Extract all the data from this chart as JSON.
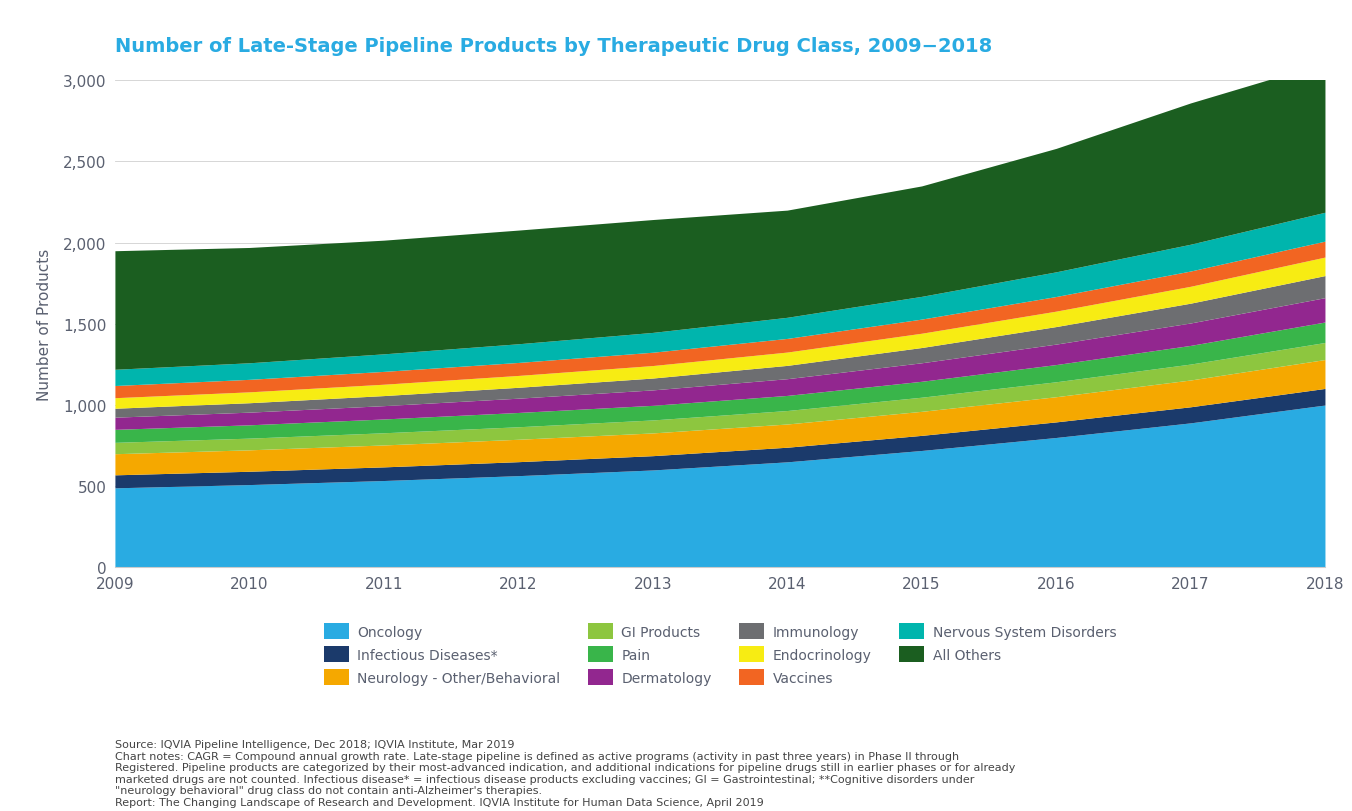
{
  "title": "Number of Late-Stage Pipeline Products by Therapeutic Drug Class, 2009−2018",
  "ylabel": "Number of Products",
  "years": [
    2009,
    2010,
    2011,
    2012,
    2013,
    2014,
    2015,
    2016,
    2017,
    2018
  ],
  "series": [
    {
      "label": "Oncology",
      "color": "#29ABE2",
      "values": [
        490,
        510,
        535,
        565,
        600,
        650,
        720,
        800,
        890,
        1000
      ]
    },
    {
      "label": "Infectious Diseases*",
      "color": "#1B3A6B",
      "values": [
        80,
        82,
        84,
        86,
        88,
        90,
        93,
        96,
        99,
        102
      ]
    },
    {
      "label": "Neurology - Other/Behavioral",
      "color": "#F5A800",
      "values": [
        130,
        132,
        135,
        138,
        140,
        143,
        148,
        155,
        165,
        178
      ]
    },
    {
      "label": "GI Products",
      "color": "#8DC63F",
      "values": [
        70,
        72,
        75,
        77,
        80,
        83,
        87,
        92,
        98,
        105
      ]
    },
    {
      "label": "Pain",
      "color": "#39B54A",
      "values": [
        80,
        82,
        85,
        88,
        90,
        93,
        98,
        106,
        115,
        126
      ]
    },
    {
      "label": "Dermatology",
      "color": "#92278F",
      "values": [
        75,
        78,
        82,
        88,
        95,
        103,
        114,
        126,
        138,
        150
      ]
    },
    {
      "label": "Immunology",
      "color": "#6D6E71",
      "values": [
        55,
        58,
        62,
        67,
        73,
        82,
        94,
        108,
        122,
        136
      ]
    },
    {
      "label": "Endocrinology",
      "color": "#F7EC13",
      "values": [
        65,
        67,
        70,
        73,
        77,
        82,
        88,
        95,
        104,
        114
      ]
    },
    {
      "label": "Vaccines",
      "color": "#F26522",
      "values": [
        75,
        77,
        79,
        80,
        82,
        84,
        87,
        90,
        94,
        98
      ]
    },
    {
      "label": "Nervous System Disorders",
      "color": "#00B5AD",
      "values": [
        100,
        102,
        108,
        115,
        122,
        130,
        140,
        152,
        165,
        178
      ]
    },
    {
      "label": "All Others",
      "color": "#1B5E20",
      "values": [
        730,
        710,
        700,
        700,
        695,
        660,
        680,
        760,
        870,
        920
      ]
    }
  ],
  "ylim": [
    0,
    3000
  ],
  "yticks": [
    0,
    500,
    1000,
    1500,
    2000,
    2500,
    3000
  ],
  "background_color": "#ffffff",
  "title_color": "#29ABE2",
  "axis_color": "#5A6070",
  "legend_order": [
    0,
    1,
    2,
    3,
    4,
    5,
    6,
    7,
    8,
    9,
    10
  ],
  "source_text": "Source: IQVIA Pipeline Intelligence, Dec 2018; IQVIA Institute, Mar 2019\nChart notes: CAGR = Compound annual growth rate. Late-stage pipeline is defined as active programs (activity in past three years) in Phase II through\nRegistered. Pipeline products are categorized by their most-advanced indication, and additional indications for pipeline drugs still in earlier phases or for already\nmarketed drugs are not counted. Infectious disease* = infectious disease products excluding vaccines; GI = Gastrointestinal; **Cognitive disorders under\n\"neurology behavioral\" drug class do not contain anti-Alzheimer's therapies.\nReport: The Changing Landscape of Research and Development. IQVIA Institute for Human Data Science, April 2019"
}
